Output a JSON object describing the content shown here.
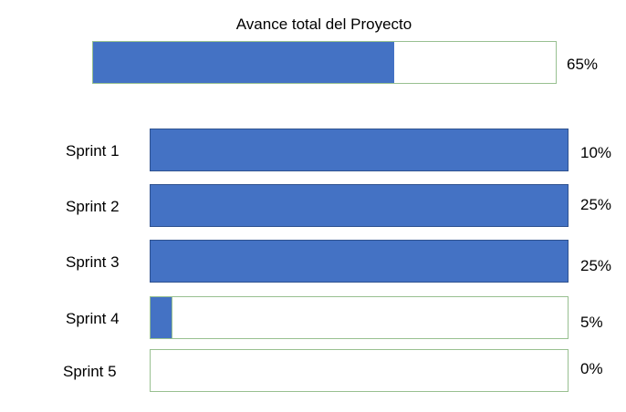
{
  "chart_data": {
    "type": "bar",
    "title": "Avance total del Proyecto",
    "total": {
      "progress": 0.65,
      "label": "65%"
    },
    "categories": [
      "Sprint 1",
      "Sprint 2",
      "Sprint 3",
      "Sprint 4",
      "Sprint 5"
    ],
    "progress": [
      1.0,
      1.0,
      1.0,
      0.05,
      0.0
    ],
    "percent_labels": [
      "10%",
      "25%",
      "25%",
      "5%",
      "0%"
    ],
    "grid": false,
    "legend": "none"
  },
  "colors": {
    "fill": "#4472c4",
    "border": "#98c090"
  }
}
